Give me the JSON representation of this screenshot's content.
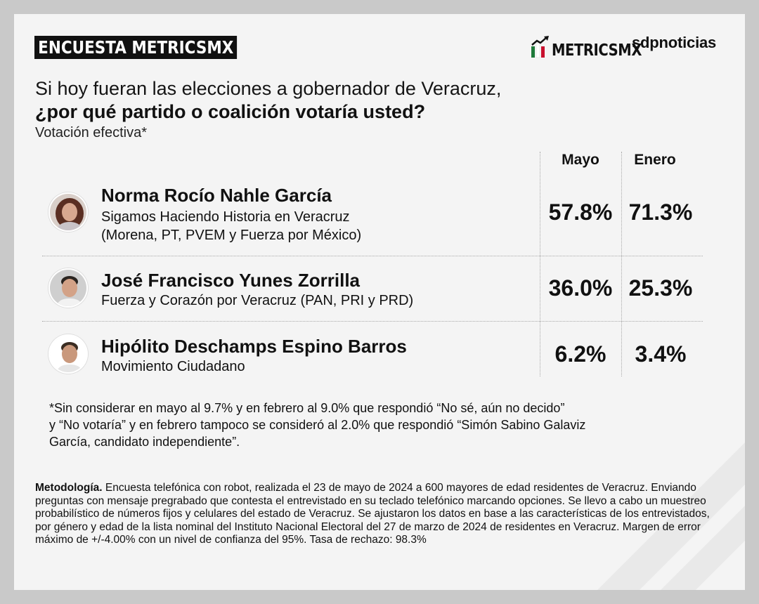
{
  "header": {
    "badge": "ENCUESTA METRICSMX",
    "logo_metrics": "METRICSMX",
    "logo_sdp": "sdpnoticias"
  },
  "question": {
    "line1": "Si hoy fueran las elecciones a gobernador de Veracruz,",
    "line2": "¿por qué partido o coalición votaría usted?",
    "line3": "Votación efectiva*"
  },
  "chart_data": {
    "type": "table",
    "columns": [
      "Mayo",
      "Enero"
    ],
    "rows": [
      {
        "name": "Norma Rocío Nahle García",
        "coalition_line1": "Sigamos Haciendo Historia en Veracruz",
        "coalition_line2": "(Morena, PT, PVEM y Fuerza por México)",
        "mayo": "57.8%",
        "enero": "71.3%"
      },
      {
        "name": "José Francisco Yunes Zorrilla",
        "coalition_line1": "Fuerza y Corazón por Veracruz (PAN, PRI y PRD)",
        "mayo": "36.0%",
        "enero": "25.3%"
      },
      {
        "name": "Hipólito Deschamps Espino Barros",
        "coalition_line1": "Movimiento Ciudadano",
        "mayo": "6.2%",
        "enero": "3.4%"
      }
    ]
  },
  "footnote": {
    "line1": "*Sin considerar en mayo al 9.7% y en febrero al 9.0% que respondió “No sé, aún no decido”",
    "line2": "y “No votaría” y en febrero tampoco se consideró al 2.0% que respondió “Simón Sabino Galaviz",
    "line3": "García, candidato independiente”."
  },
  "methodology": {
    "label": "Metodología.",
    "text": "Encuesta telefónica con robot, realizada el 23 de mayo de 2024 a 600 mayores de edad residentes de Veracruz. Enviando preguntas con mensaje pregrabado que contesta el entrevistado en su teclado telefónico marcando opciones. Se llevo a cabo un muestreo probabilístico de números fijos y celulares del estado de Veracruz. Se ajustaron los datos en base a las características de los entrevistados, por género y edad de la lista nominal del Instituto Nacional Electoral del 27 de marzo de 2024 de residentes en Veracruz. Margen de error máximo de +/-4.00% con un nivel de confianza del 95%. Tasa de rechazo: 98.3%"
  },
  "colors": {
    "background": "#f4f4f4",
    "frame": "#c9c9c9",
    "badge_bg": "#111111",
    "flag_green": "#1f7a3a",
    "flag_red": "#c8102e"
  },
  "icons": [
    "metricsmx-chart-logo-icon",
    "candidate-photo-nahle",
    "candidate-photo-yunes",
    "candidate-photo-deschamps"
  ]
}
